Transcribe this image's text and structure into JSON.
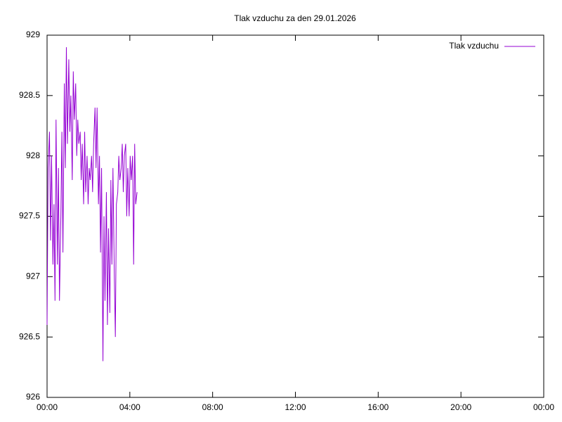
{
  "chart_data": {
    "type": "line",
    "title": "Tlak vzduchu za den 29.01.2026",
    "x": [
      0,
      3,
      7,
      10,
      13,
      17,
      20,
      23,
      26,
      30,
      33,
      36,
      40,
      43,
      46,
      50,
      53,
      56,
      59,
      63,
      66,
      69,
      73,
      76,
      79,
      83,
      86,
      89,
      92,
      96,
      99,
      102,
      106,
      109,
      112,
      116,
      119,
      122,
      125,
      129,
      132,
      135,
      139,
      142,
      145,
      149,
      152,
      155,
      158,
      162,
      165,
      168,
      172,
      175,
      178,
      182,
      185,
      188,
      191,
      195,
      198,
      201,
      205,
      208,
      211,
      215,
      218,
      221,
      224,
      228,
      231,
      234,
      238,
      241,
      244,
      248,
      251,
      254,
      257,
      261
    ],
    "series": [
      {
        "name": "Tlak vzduchu",
        "color": "#9400d3",
        "values": [
          926.6,
          927.9,
          928.2,
          927.3,
          928.0,
          927.1,
          927.6,
          926.8,
          928.3,
          927.1,
          927.9,
          926.8,
          927.5,
          928.2,
          927.2,
          928.6,
          927.9,
          928.9,
          928.1,
          928.8,
          928.2,
          928.5,
          927.8,
          928.7,
          928.3,
          928.6,
          928.0,
          928.3,
          928.1,
          928.2,
          927.8,
          928.1,
          927.6,
          928.2,
          927.7,
          928.0,
          927.6,
          927.9,
          927.8,
          928.0,
          927.7,
          928.1,
          928.4,
          927.9,
          928.4,
          927.6,
          928.0,
          927.2,
          927.9,
          926.3,
          927.5,
          926.8,
          927.7,
          926.6,
          927.4,
          926.7,
          927.8,
          927.1,
          927.9,
          927.0,
          926.5,
          927.6,
          927.7,
          928.0,
          927.8,
          927.9,
          928.1,
          927.7,
          928.0,
          928.1,
          927.5,
          927.9,
          927.5,
          928.0,
          927.8,
          928.0,
          927.1,
          928.1,
          927.6,
          927.7
        ]
      }
    ],
    "xlim": [
      0,
      1440
    ],
    "xticks": [
      {
        "value": 0,
        "label": "00:00"
      },
      {
        "value": 240,
        "label": "04:00"
      },
      {
        "value": 480,
        "label": "08:00"
      },
      {
        "value": 720,
        "label": "12:00"
      },
      {
        "value": 960,
        "label": "16:00"
      },
      {
        "value": 1200,
        "label": "20:00"
      },
      {
        "value": 1440,
        "label": "00:00"
      }
    ],
    "ylim": [
      926,
      929
    ],
    "yticks": [
      926,
      926.5,
      927,
      927.5,
      928,
      928.5,
      929
    ],
    "grid": false,
    "legend": "top-right"
  }
}
